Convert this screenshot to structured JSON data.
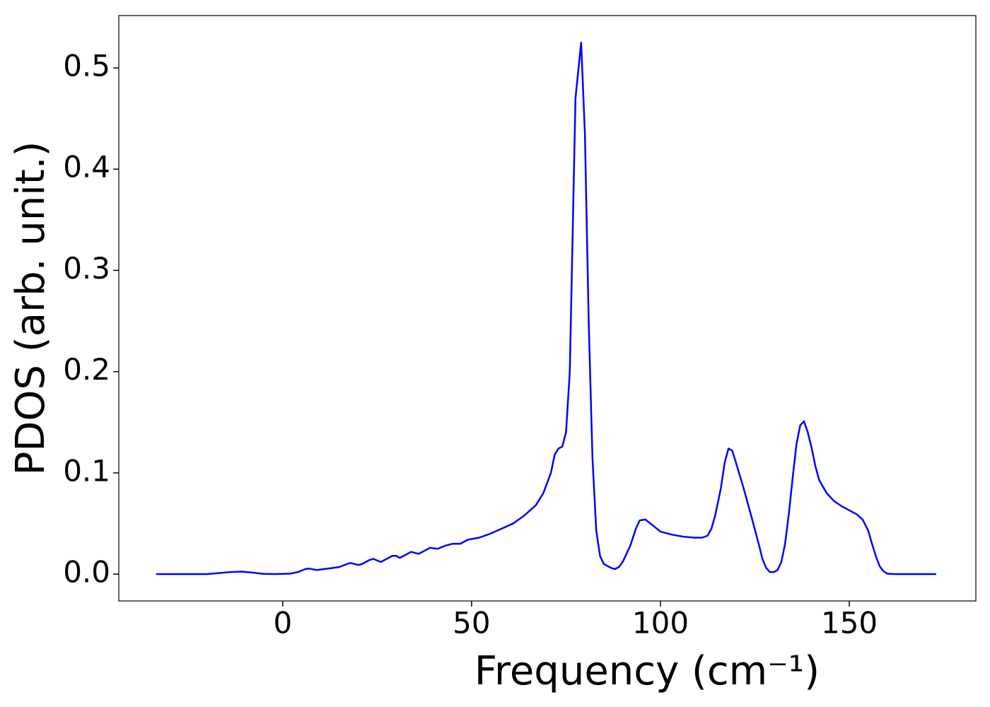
{
  "chart_data": {
    "type": "line",
    "xlabel": "Frequency (cm⁻¹)",
    "ylabel": "PDOS (arb. unit.)",
    "x": [
      -33.5,
      -20,
      -17,
      -14,
      -11,
      -8,
      -5,
      -2,
      2,
      4,
      6,
      7,
      9,
      11,
      13,
      15,
      17,
      18,
      20,
      21,
      23,
      24,
      26,
      27,
      29,
      30,
      31,
      33,
      34,
      36,
      38,
      39,
      41,
      43,
      45,
      47,
      49,
      52,
      55,
      58,
      61,
      64,
      67,
      69,
      71,
      72,
      73,
      74,
      75,
      76,
      77.5,
      79,
      80,
      81,
      82,
      83,
      84,
      85,
      87,
      88,
      89,
      90,
      92,
      93.5,
      94.5,
      96,
      98,
      100,
      103,
      106,
      109,
      111,
      112.5,
      113.5,
      114.5,
      116,
      117,
      118,
      119,
      120,
      122,
      124,
      126,
      127,
      128,
      129,
      130,
      131,
      132,
      133,
      134,
      135,
      136,
      137,
      138,
      139,
      140,
      141,
      142,
      144,
      146,
      148,
      150,
      152,
      153.5,
      155,
      156,
      157,
      158,
      159,
      160,
      162,
      173
    ],
    "series": [
      {
        "name": "PDOS",
        "color": "#0000ff",
        "values": [
          0,
          0,
          0.001,
          0.002,
          0.0025,
          0.0015,
          0.0002,
          0,
          0.0005,
          0.002,
          0.005,
          0.0055,
          0.004,
          0.005,
          0.006,
          0.007,
          0.01,
          0.011,
          0.009,
          0.01,
          0.014,
          0.015,
          0.012,
          0.014,
          0.018,
          0.018,
          0.016,
          0.02,
          0.022,
          0.02,
          0.024,
          0.026,
          0.025,
          0.028,
          0.03,
          0.03,
          0.034,
          0.036,
          0.04,
          0.045,
          0.05,
          0.058,
          0.068,
          0.08,
          0.1,
          0.118,
          0.124,
          0.126,
          0.14,
          0.2,
          0.47,
          0.525,
          0.435,
          0.25,
          0.115,
          0.043,
          0.018,
          0.01,
          0.006,
          0.005,
          0.007,
          0.012,
          0.028,
          0.045,
          0.053,
          0.054,
          0.048,
          0.042,
          0.039,
          0.037,
          0.036,
          0.036,
          0.038,
          0.045,
          0.058,
          0.085,
          0.11,
          0.124,
          0.122,
          0.11,
          0.085,
          0.058,
          0.03,
          0.015,
          0.006,
          0.002,
          0.002,
          0.004,
          0.012,
          0.03,
          0.06,
          0.095,
          0.128,
          0.147,
          0.151,
          0.14,
          0.125,
          0.107,
          0.093,
          0.08,
          0.072,
          0.067,
          0.063,
          0.059,
          0.054,
          0.043,
          0.03,
          0.018,
          0.008,
          0.003,
          0.0005,
          0,
          0
        ]
      }
    ],
    "xlim": [
      -43.4,
      183.5
    ],
    "xticks": [
      0,
      50,
      100,
      150
    ],
    "ylim": [
      -0.0265,
      0.5517
    ],
    "yticks": [
      {
        "value": 0,
        "label": "0.0"
      },
      0.1,
      0.2,
      0.3,
      0.4,
      0.5
    ],
    "grid": false
  }
}
